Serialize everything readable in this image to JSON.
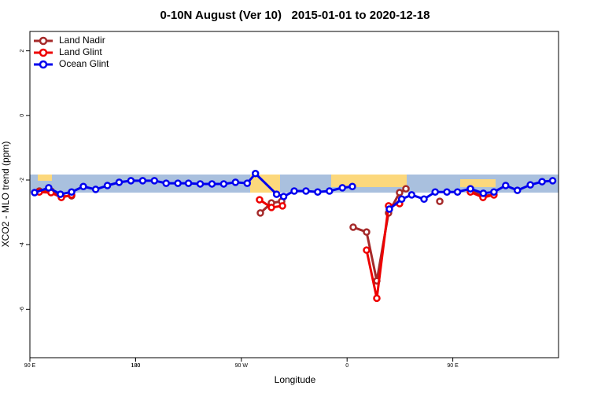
{
  "chart_data": {
    "type": "line",
    "title": "0-10N August (Ver 10)   2015-01-01 to 2020-12-18",
    "xlabel": "Longitude",
    "ylabel": "XCO2 - MLO trend (ppm)",
    "xlim": [
      90,
      540
    ],
    "ylim": [
      -7.5,
      2.6
    ],
    "xticks": [
      {
        "value": 90,
        "label": "90 E"
      },
      180,
      {
        "value": 270,
        "label": "90 W"
      },
      {
        "value": 360,
        "label": "0"
      },
      {
        "value": 450,
        "label": "90 E"
      },
      180
    ],
    "yticks": [
      2,
      0,
      -2,
      -4,
      -6
    ],
    "legend": "top-left",
    "series": [
      {
        "name": "Land Nadir",
        "color": "#a52a2a",
        "x": [
          98,
          108,
          116.8,
          125.5,
          null,
          286.2,
          295.6,
          304.3,
          null,
          365.2,
          376.6,
          385.3,
          395.3,
          404.7,
          410.1,
          null,
          438.9,
          null,
          465,
          475.7,
          485
        ],
        "values": [
          -2.34,
          -2.34,
          -2.51,
          -2.49,
          null,
          -3.02,
          -2.71,
          -2.66,
          null,
          -3.46,
          -3.61,
          -5.12,
          -3.02,
          -2.39,
          -2.27,
          null,
          -2.66,
          null,
          -2.34,
          -2.49,
          -2.46
        ]
      },
      {
        "name": "Land Glint",
        "color": "#ee0000",
        "x": [
          98,
          108,
          116.8,
          125.5,
          null,
          285.5,
          295.6,
          305,
          null,
          376.6,
          385.3,
          395.3,
          404.7,
          null,
          465,
          475.7,
          485
        ],
        "values": [
          -2.37,
          -2.39,
          -2.54,
          -2.46,
          null,
          -2.61,
          -2.85,
          -2.8,
          null,
          -4.17,
          -5.66,
          -2.8,
          -2.73,
          null,
          -2.37,
          -2.54,
          -2.46
        ]
      },
      {
        "name": "Ocean Glint",
        "color": "#0000ee",
        "x": [
          94,
          106,
          116,
          125.5,
          135.5,
          146,
          156,
          166,
          176,
          186,
          196,
          206,
          216,
          225,
          235,
          245,
          255,
          265,
          275,
          282,
          300,
          306,
          315,
          325,
          335,
          345,
          356,
          364.5,
          null,
          396,
          406.5,
          415,
          425.5,
          435,
          445,
          454,
          465,
          476,
          485,
          495,
          505,
          516,
          526,
          535
        ],
        "values": [
          -2.39,
          -2.24,
          -2.44,
          -2.37,
          -2.2,
          -2.29,
          -2.17,
          -2.07,
          -2.02,
          -2.02,
          -2.02,
          -2.1,
          -2.1,
          -2.1,
          -2.12,
          -2.12,
          -2.12,
          -2.07,
          -2.1,
          -1.8,
          -2.44,
          -2.51,
          -2.34,
          -2.34,
          -2.37,
          -2.34,
          -2.24,
          -2.2,
          null,
          -2.9,
          -2.59,
          -2.46,
          -2.59,
          -2.37,
          -2.37,
          -2.37,
          -2.27,
          -2.41,
          -2.37,
          -2.17,
          -2.32,
          -2.15,
          -2.05,
          -2.02
        ]
      }
    ]
  }
}
